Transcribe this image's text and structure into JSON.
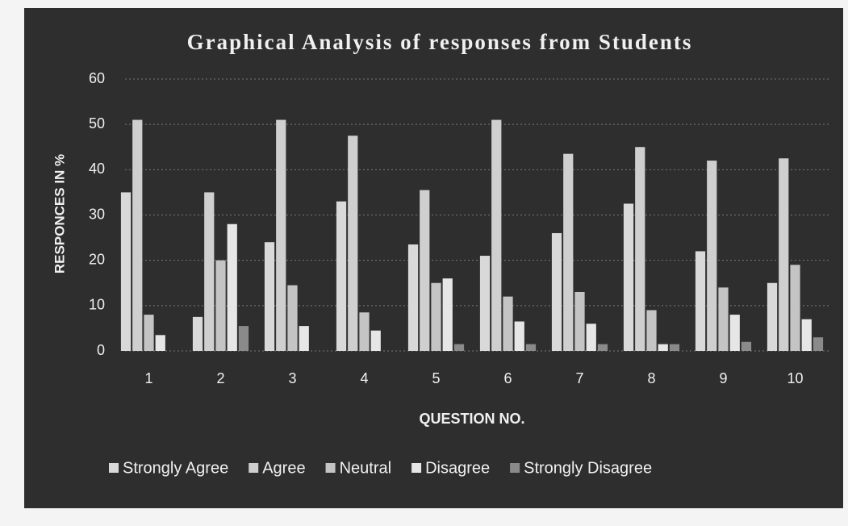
{
  "chart_data": {
    "type": "bar",
    "title": "Graphical Analysis of responses from Students",
    "x_label": "QUESTION NO.",
    "y_label": "RESPONCES IN %",
    "categories": [
      "1",
      "2",
      "3",
      "4",
      "5",
      "6",
      "7",
      "8",
      "9",
      "10"
    ],
    "series": [
      {
        "name": "Strongly Agree",
        "color": "#d9d9d9",
        "values": [
          35,
          7.5,
          24,
          33,
          23.5,
          21,
          26,
          32.5,
          22,
          15
        ]
      },
      {
        "name": "Agree",
        "color": "#cfcfcf",
        "values": [
          51,
          35,
          51,
          47.5,
          35.5,
          51,
          43.5,
          45,
          42,
          42.5
        ]
      },
      {
        "name": "Neutral",
        "color": "#c4c4c4",
        "values": [
          8,
          20,
          14.5,
          8.5,
          15,
          12,
          13,
          9,
          14,
          19
        ]
      },
      {
        "name": "Disagree",
        "color": "#e6e6e6",
        "values": [
          3.5,
          28,
          5.5,
          4.5,
          16,
          6.5,
          6,
          1.5,
          8,
          7
        ]
      },
      {
        "name": "Strongly Disagree",
        "color": "#8a8a8a",
        "values": [
          0,
          5.5,
          0,
          0,
          1.5,
          1.5,
          1.5,
          1.5,
          2,
          3
        ]
      }
    ],
    "ylim": [
      0,
      60
    ],
    "yticks": [
      0,
      10,
      20,
      30,
      40,
      50,
      60
    ],
    "grid": true,
    "legend": "bottom"
  }
}
